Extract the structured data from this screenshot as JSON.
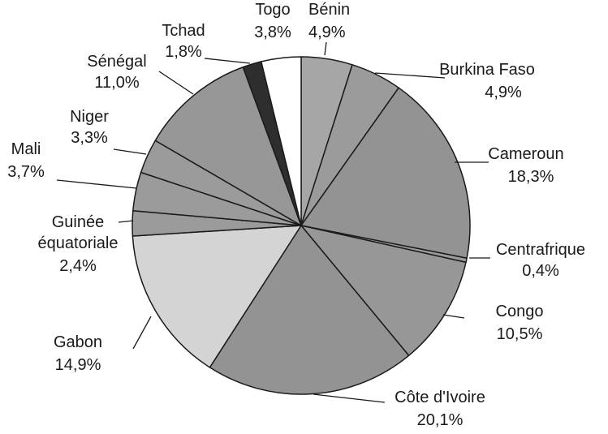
{
  "chart_data": {
    "type": "pie",
    "title": "",
    "unit": "%",
    "start_angle_deg": 0,
    "direction": "clockwise",
    "slices": [
      {
        "label": "Bénin",
        "value": 4.9,
        "value_text": "4,9%",
        "color": "#a6a6a6"
      },
      {
        "label": "Burkina Faso",
        "value": 4.9,
        "value_text": "4,9%",
        "color": "#9b9b9b"
      },
      {
        "label": "Cameroun",
        "value": 18.3,
        "value_text": "18,3%",
        "color": "#939393"
      },
      {
        "label": "Centrafrique",
        "value": 0.4,
        "value_text": "0,4%",
        "color": "#9b9b9b"
      },
      {
        "label": "Congo",
        "value": 10.5,
        "value_text": "10,5%",
        "color": "#979797"
      },
      {
        "label": "Côte d'Ivoire",
        "value": 20.1,
        "value_text": "20,1%",
        "color": "#939393"
      },
      {
        "label": "Gabon",
        "value": 14.9,
        "value_text": "14,9%",
        "color": "#d4d4d4"
      },
      {
        "label": "Guinée équatoriale",
        "value": 2.4,
        "value_text": "2,4%",
        "color": "#9b9b9b"
      },
      {
        "label": "Mali",
        "value": 3.7,
        "value_text": "3,7%",
        "color": "#9b9b9b"
      },
      {
        "label": "Niger",
        "value": 3.3,
        "value_text": "3,3%",
        "color": "#9b9b9b"
      },
      {
        "label": "Sénégal",
        "value": 11.0,
        "value_text": "11,0%",
        "color": "#979797"
      },
      {
        "label": "Tchad",
        "value": 1.8,
        "value_text": "1,8%",
        "color": "#2e2e2e"
      },
      {
        "label": "Togo",
        "value": 3.8,
        "value_text": "3,8%",
        "color": "#ffffff"
      }
    ]
  }
}
